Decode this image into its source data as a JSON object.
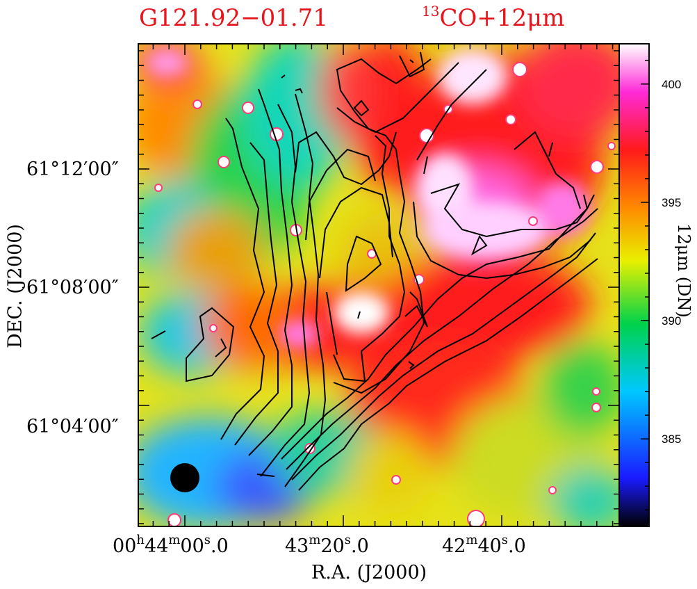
{
  "chart_data": {
    "type": "heatmap",
    "title_left": "G121.92−01.71",
    "title_right_sup": "13",
    "title_right_text": "CO+12μm",
    "xlabel": "R.A. (J2000)",
    "ylabel": "DEC. (J2000)",
    "colorbar_label": "12μm (DN)",
    "colorbar_range": [
      381.3,
      401.7
    ],
    "colorbar_ticks": [
      385,
      390,
      395,
      400
    ],
    "colormap": [
      "#000000",
      "#1a1aff",
      "#00c8ff",
      "#00d24b",
      "#e8f000",
      "#ff8a00",
      "#ff1a1a",
      "#ff2ad7",
      "#ffffff"
    ],
    "x_ticks": [
      {
        "h": "00",
        "m": "44",
        "s": "00",
        "frac": "0"
      },
      {
        "m": "43",
        "s": "20",
        "frac": "0"
      },
      {
        "m": "42",
        "s": "40",
        "frac": "0"
      }
    ],
    "y_ticks": [
      "61°12′00″",
      "61°08′00″",
      "61°04′00″"
    ],
    "contour_overlay": "13CO",
    "beam": "filled circle, lower-left"
  }
}
